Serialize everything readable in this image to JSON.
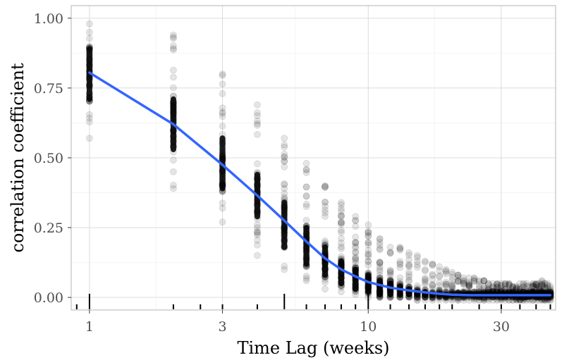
{
  "chart_data": {
    "type": "scatter",
    "title": "",
    "xlabel": "Time Lag (weeks)",
    "ylabel": "correlation coefficient",
    "x_scale": "log",
    "xlim": [
      0.86,
      47
    ],
    "ylim": [
      -0.045,
      1.045
    ],
    "x_ticks": [
      1,
      3,
      10,
      30
    ],
    "x_tick_labels": [
      "1",
      "3",
      "10",
      "30"
    ],
    "y_ticks": [
      0,
      0.25,
      0.5,
      0.75,
      1
    ],
    "y_tick_labels": [
      "0.00",
      "0.25",
      "0.50",
      "0.75",
      "1.00"
    ],
    "grid": true,
    "legend": "none",
    "lags": [
      1,
      2,
      3,
      4,
      5,
      6,
      7,
      8,
      9,
      10,
      11,
      12,
      13,
      14,
      15,
      16,
      17,
      18,
      19,
      20,
      21,
      22,
      23,
      24,
      25,
      26,
      27,
      28,
      29,
      30,
      31,
      32,
      33,
      34,
      35,
      36,
      37,
      38,
      39,
      40,
      41,
      42,
      43,
      44,
      45
    ],
    "point_ranges": [
      [
        0.57,
        0.98
      ],
      [
        0.39,
        0.94
      ],
      [
        0.27,
        0.8
      ],
      [
        0.15,
        0.69
      ],
      [
        0.1,
        0.57
      ],
      [
        0.06,
        0.48
      ],
      [
        0.03,
        0.4
      ],
      [
        0.02,
        0.34
      ],
      [
        0.01,
        0.29
      ],
      [
        0.0,
        0.26
      ],
      [
        0.0,
        0.21
      ],
      [
        0.0,
        0.18
      ],
      [
        0.0,
        0.18
      ],
      [
        0.0,
        0.16
      ],
      [
        -0.01,
        0.15
      ],
      [
        -0.01,
        0.13
      ],
      [
        -0.01,
        0.12
      ],
      [
        -0.01,
        0.11
      ],
      [
        -0.01,
        0.1
      ],
      [
        -0.01,
        0.09
      ],
      [
        -0.01,
        0.08
      ],
      [
        -0.01,
        0.07
      ],
      [
        -0.01,
        0.07
      ],
      [
        -0.01,
        0.07
      ],
      [
        -0.01,
        0.06
      ],
      [
        -0.01,
        0.06
      ],
      [
        -0.01,
        0.05
      ],
      [
        -0.01,
        0.05
      ],
      [
        -0.01,
        0.05
      ],
      [
        -0.01,
        0.05
      ],
      [
        -0.01,
        0.05
      ],
      [
        -0.01,
        0.05
      ],
      [
        -0.01,
        0.04
      ],
      [
        -0.01,
        0.04
      ],
      [
        -0.01,
        0.05
      ],
      [
        -0.01,
        0.05
      ],
      [
        -0.01,
        0.05
      ],
      [
        -0.01,
        0.04
      ],
      [
        -0.01,
        0.05
      ],
      [
        -0.01,
        0.05
      ],
      [
        -0.01,
        0.05
      ],
      [
        -0.01,
        0.06
      ],
      [
        -0.01,
        0.05
      ],
      [
        -0.01,
        0.05
      ],
      [
        -0.01,
        0.04
      ]
    ],
    "core_ranges": [
      [
        0.7,
        0.9
      ],
      [
        0.52,
        0.72
      ],
      [
        0.38,
        0.58
      ],
      [
        0.28,
        0.45
      ],
      [
        0.17,
        0.35
      ],
      [
        0.11,
        0.26
      ],
      [
        0.07,
        0.19
      ],
      [
        0.04,
        0.14
      ],
      [
        0.02,
        0.11
      ],
      [
        0.01,
        0.09
      ],
      [
        0.0,
        0.07
      ],
      [
        0.0,
        0.06
      ],
      [
        0.0,
        0.05
      ],
      [
        0.0,
        0.04
      ],
      [
        0.0,
        0.03
      ],
      [
        0.0,
        0.03
      ],
      [
        0.0,
        0.02
      ],
      [
        0.0,
        0.02
      ],
      [
        0.0,
        0.02
      ],
      [
        0.0,
        0.02
      ],
      [
        0.0,
        0.02
      ],
      [
        0.0,
        0.02
      ],
      [
        0.0,
        0.02
      ],
      [
        0.0,
        0.02
      ],
      [
        0.0,
        0.02
      ],
      [
        0.0,
        0.02
      ],
      [
        0.0,
        0.02
      ],
      [
        0.0,
        0.02
      ],
      [
        0.0,
        0.02
      ],
      [
        0.0,
        0.02
      ],
      [
        0.0,
        0.02
      ],
      [
        0.0,
        0.02
      ],
      [
        0.0,
        0.02
      ],
      [
        0.0,
        0.02
      ],
      [
        0.0,
        0.02
      ],
      [
        0.0,
        0.02
      ],
      [
        0.0,
        0.02
      ],
      [
        0.0,
        0.02
      ],
      [
        0.0,
        0.02
      ],
      [
        0.0,
        0.02
      ],
      [
        0.0,
        0.02
      ],
      [
        0.0,
        0.02
      ],
      [
        0.0,
        0.02
      ],
      [
        0.0,
        0.02
      ],
      [
        0.0,
        0.02
      ]
    ],
    "trend": {
      "x": [
        1,
        2,
        3,
        4,
        5,
        6,
        7,
        8,
        9,
        10,
        12,
        14,
        16,
        18,
        20,
        23,
        26,
        30,
        35,
        40,
        45
      ],
      "y": [
        0.805,
        0.62,
        0.475,
        0.365,
        0.275,
        0.2,
        0.14,
        0.1,
        0.075,
        0.055,
        0.035,
        0.025,
        0.018,
        0.013,
        0.01,
        0.008,
        0.008,
        0.008,
        0.008,
        0.008,
        0.008
      ]
    },
    "rug_x": [
      0.9,
      1,
      2,
      2.5,
      3,
      4,
      5,
      6,
      7,
      8,
      9,
      10,
      12,
      14,
      16,
      18,
      20,
      25,
      30,
      35,
      40,
      45
    ],
    "rug_tall": [
      1,
      5,
      10
    ],
    "colors": {
      "points": "#000000",
      "trend": "#3366ff",
      "grid_major": "#dcdcdc",
      "grid_minor": "#eeeeee",
      "panel_border": "#b3b3b3"
    }
  }
}
